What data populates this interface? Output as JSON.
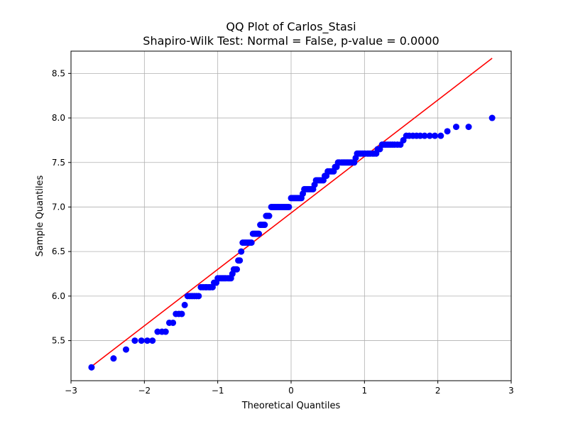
{
  "chart_data": {
    "type": "scatter",
    "title_line1": "QQ Plot of Carlos_Stasi",
    "title_line2": "Shapiro-Wilk Test: Normal = False, p-value = 0.0000",
    "xlabel": "Theoretical Quantiles",
    "ylabel": "Sample Quantiles",
    "xlim": [
      -3.0,
      3.0
    ],
    "ylim": [
      5.05,
      8.75
    ],
    "x_ticks": [
      {
        "value": -3,
        "label": "−3"
      },
      {
        "value": -2,
        "label": "−2"
      },
      {
        "value": -1,
        "label": "−1"
      },
      {
        "value": 0,
        "label": "0"
      },
      {
        "value": 1,
        "label": "1"
      },
      {
        "value": 2,
        "label": "2"
      },
      {
        "value": 3,
        "label": "3"
      }
    ],
    "y_ticks": [
      {
        "value": 5.5,
        "label": "5.5"
      },
      {
        "value": 6.0,
        "label": "6.0"
      },
      {
        "value": 6.5,
        "label": "6.5"
      },
      {
        "value": 7.0,
        "label": "7.0"
      },
      {
        "value": 7.5,
        "label": "7.5"
      },
      {
        "value": 8.0,
        "label": "8.0"
      },
      {
        "value": 8.5,
        "label": "8.5"
      }
    ],
    "grid": true,
    "points_color": "#0000ff",
    "line_color": "#ff0000",
    "reference_line": {
      "x": [
        -2.72,
        2.74
      ],
      "y": [
        5.21,
        8.67
      ]
    },
    "points": [
      [
        -2.72,
        5.2
      ],
      [
        -2.42,
        5.3
      ],
      [
        -2.25,
        5.4
      ],
      [
        -2.13,
        5.5
      ],
      [
        -2.04,
        5.5
      ],
      [
        -1.96,
        5.5
      ],
      [
        -1.89,
        5.5
      ],
      [
        -1.82,
        5.6
      ],
      [
        -1.76,
        5.6
      ],
      [
        -1.71,
        5.6
      ],
      [
        -1.66,
        5.7
      ],
      [
        -1.61,
        5.7
      ],
      [
        -1.57,
        5.8
      ],
      [
        -1.53,
        5.8
      ],
      [
        -1.49,
        5.8
      ],
      [
        -1.45,
        5.9
      ],
      [
        -1.41,
        6.0
      ],
      [
        -1.38,
        6.0
      ],
      [
        -1.35,
        6.0
      ],
      [
        -1.32,
        6.0
      ],
      [
        -1.29,
        6.0
      ],
      [
        -1.26,
        6.0
      ],
      [
        -1.23,
        6.1
      ],
      [
        -1.2,
        6.1
      ],
      [
        -1.17,
        6.1
      ],
      [
        -1.15,
        6.1
      ],
      [
        -1.12,
        6.1
      ],
      [
        -1.1,
        6.1
      ],
      [
        -1.07,
        6.1
      ],
      [
        -1.05,
        6.15
      ],
      [
        -1.02,
        6.15
      ],
      [
        -1.0,
        6.2
      ],
      [
        -0.97,
        6.2
      ],
      [
        -0.95,
        6.2
      ],
      [
        -0.93,
        6.2
      ],
      [
        -0.91,
        6.2
      ],
      [
        -0.89,
        6.2
      ],
      [
        -0.86,
        6.2
      ],
      [
        -0.84,
        6.2
      ],
      [
        -0.82,
        6.2
      ],
      [
        -0.8,
        6.25
      ],
      [
        -0.78,
        6.3
      ],
      [
        -0.76,
        6.3
      ],
      [
        -0.74,
        6.3
      ],
      [
        -0.72,
        6.4
      ],
      [
        -0.7,
        6.4
      ],
      [
        -0.68,
        6.5
      ],
      [
        -0.66,
        6.6
      ],
      [
        -0.64,
        6.6
      ],
      [
        -0.62,
        6.6
      ],
      [
        -0.6,
        6.6
      ],
      [
        -0.58,
        6.6
      ],
      [
        -0.56,
        6.6
      ],
      [
        -0.54,
        6.6
      ],
      [
        -0.52,
        6.7
      ],
      [
        -0.5,
        6.7
      ],
      [
        -0.48,
        6.7
      ],
      [
        -0.46,
        6.7
      ],
      [
        -0.44,
        6.7
      ],
      [
        -0.42,
        6.8
      ],
      [
        -0.4,
        6.8
      ],
      [
        -0.38,
        6.8
      ],
      [
        -0.36,
        6.8
      ],
      [
        -0.34,
        6.9
      ],
      [
        -0.32,
        6.9
      ],
      [
        -0.3,
        6.9
      ],
      [
        -0.27,
        7.0
      ],
      [
        -0.25,
        7.0
      ],
      [
        -0.23,
        7.0
      ],
      [
        -0.21,
        7.0
      ],
      [
        -0.19,
        7.0
      ],
      [
        -0.17,
        7.0
      ],
      [
        -0.15,
        7.0
      ],
      [
        -0.13,
        7.0
      ],
      [
        -0.11,
        7.0
      ],
      [
        -0.09,
        7.0
      ],
      [
        -0.07,
        7.0
      ],
      [
        -0.05,
        7.0
      ],
      [
        -0.03,
        7.0
      ],
      [
        0.0,
        7.1
      ],
      [
        0.02,
        7.1
      ],
      [
        0.04,
        7.1
      ],
      [
        0.06,
        7.1
      ],
      [
        0.08,
        7.1
      ],
      [
        0.1,
        7.1
      ],
      [
        0.12,
        7.1
      ],
      [
        0.14,
        7.1
      ],
      [
        0.16,
        7.15
      ],
      [
        0.18,
        7.2
      ],
      [
        0.2,
        7.2
      ],
      [
        0.22,
        7.2
      ],
      [
        0.24,
        7.2
      ],
      [
        0.26,
        7.2
      ],
      [
        0.28,
        7.2
      ],
      [
        0.3,
        7.2
      ],
      [
        0.32,
        7.25
      ],
      [
        0.34,
        7.3
      ],
      [
        0.36,
        7.3
      ],
      [
        0.38,
        7.3
      ],
      [
        0.4,
        7.3
      ],
      [
        0.42,
        7.3
      ],
      [
        0.44,
        7.3
      ],
      [
        0.46,
        7.35
      ],
      [
        0.48,
        7.35
      ],
      [
        0.5,
        7.4
      ],
      [
        0.52,
        7.4
      ],
      [
        0.54,
        7.4
      ],
      [
        0.56,
        7.4
      ],
      [
        0.58,
        7.4
      ],
      [
        0.6,
        7.45
      ],
      [
        0.62,
        7.45
      ],
      [
        0.64,
        7.5
      ],
      [
        0.66,
        7.5
      ],
      [
        0.69,
        7.5
      ],
      [
        0.71,
        7.5
      ],
      [
        0.73,
        7.5
      ],
      [
        0.75,
        7.5
      ],
      [
        0.77,
        7.5
      ],
      [
        0.79,
        7.5
      ],
      [
        0.81,
        7.5
      ],
      [
        0.83,
        7.5
      ],
      [
        0.86,
        7.5
      ],
      [
        0.88,
        7.55
      ],
      [
        0.9,
        7.6
      ],
      [
        0.92,
        7.6
      ],
      [
        0.94,
        7.6
      ],
      [
        0.97,
        7.6
      ],
      [
        0.99,
        7.6
      ],
      [
        1.01,
        7.6
      ],
      [
        1.04,
        7.6
      ],
      [
        1.06,
        7.6
      ],
      [
        1.08,
        7.6
      ],
      [
        1.11,
        7.6
      ],
      [
        1.13,
        7.6
      ],
      [
        1.16,
        7.6
      ],
      [
        1.18,
        7.65
      ],
      [
        1.21,
        7.65
      ],
      [
        1.24,
        7.7
      ],
      [
        1.26,
        7.7
      ],
      [
        1.29,
        7.7
      ],
      [
        1.32,
        7.7
      ],
      [
        1.35,
        7.7
      ],
      [
        1.38,
        7.7
      ],
      [
        1.41,
        7.7
      ],
      [
        1.45,
        7.7
      ],
      [
        1.49,
        7.7
      ],
      [
        1.53,
        7.75
      ],
      [
        1.57,
        7.8
      ],
      [
        1.61,
        7.8
      ],
      [
        1.66,
        7.8
      ],
      [
        1.71,
        7.8
      ],
      [
        1.76,
        7.8
      ],
      [
        1.82,
        7.8
      ],
      [
        1.89,
        7.8
      ],
      [
        1.96,
        7.8
      ],
      [
        2.04,
        7.8
      ],
      [
        2.13,
        7.85
      ],
      [
        2.25,
        7.9
      ],
      [
        2.42,
        7.9
      ],
      [
        2.74,
        8.0
      ]
    ]
  }
}
